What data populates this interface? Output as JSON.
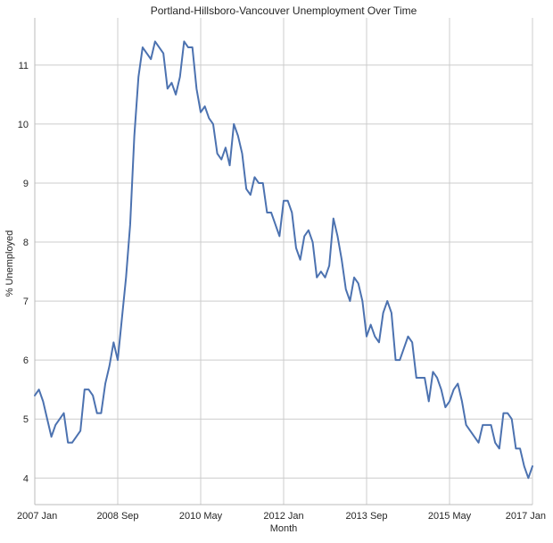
{
  "chart_data": {
    "type": "line",
    "title": "Portland-Hillsboro-Vancouver Unemployment Over Time",
    "xlabel": "Month",
    "ylabel": "% Unemployed",
    "x_tick_labels": [
      "2007 Jan",
      "2008 Sep",
      "2010 May",
      "2012 Jan",
      "2013 Sep",
      "2015 May",
      "2017 Jan"
    ],
    "y_ticks": [
      4,
      5,
      6,
      7,
      8,
      9,
      10,
      11
    ],
    "xlim": [
      "2007 Jan",
      "2017 Jan"
    ],
    "ylim": [
      3.55,
      11.8
    ],
    "grid": true,
    "line_color": "#4c72b0",
    "x": [
      "2007 Jan",
      "2007 Feb",
      "2007 Mar",
      "2007 Apr",
      "2007 May",
      "2007 Jun",
      "2007 Jul",
      "2007 Aug",
      "2007 Sep",
      "2007 Oct",
      "2007 Nov",
      "2007 Dec",
      "2008 Jan",
      "2008 Feb",
      "2008 Mar",
      "2008 Apr",
      "2008 May",
      "2008 Jun",
      "2008 Jul",
      "2008 Aug",
      "2008 Sep",
      "2008 Oct",
      "2008 Nov",
      "2008 Dec",
      "2009 Jan",
      "2009 Feb",
      "2009 Mar",
      "2009 Apr",
      "2009 May",
      "2009 Jun",
      "2009 Jul",
      "2009 Aug",
      "2009 Sep",
      "2009 Oct",
      "2009 Nov",
      "2009 Dec",
      "2010 Jan",
      "2010 Feb",
      "2010 Mar",
      "2010 Apr",
      "2010 May",
      "2010 Jun",
      "2010 Jul",
      "2010 Aug",
      "2010 Sep",
      "2010 Oct",
      "2010 Nov",
      "2010 Dec",
      "2011 Jan",
      "2011 Feb",
      "2011 Mar",
      "2011 Apr",
      "2011 May",
      "2011 Jun",
      "2011 Jul",
      "2011 Aug",
      "2011 Sep",
      "2011 Oct",
      "2011 Nov",
      "2011 Dec",
      "2012 Jan",
      "2012 Feb",
      "2012 Mar",
      "2012 Apr",
      "2012 May",
      "2012 Jun",
      "2012 Jul",
      "2012 Aug",
      "2012 Sep",
      "2012 Oct",
      "2012 Nov",
      "2012 Dec",
      "2013 Jan",
      "2013 Feb",
      "2013 Mar",
      "2013 Apr",
      "2013 May",
      "2013 Jun",
      "2013 Jul",
      "2013 Aug",
      "2013 Sep",
      "2013 Oct",
      "2013 Nov",
      "2013 Dec",
      "2014 Jan",
      "2014 Feb",
      "2014 Mar",
      "2014 Apr",
      "2014 May",
      "2014 Jun",
      "2014 Jul",
      "2014 Aug",
      "2014 Sep",
      "2014 Oct",
      "2014 Nov",
      "2014 Dec",
      "2015 Jan",
      "2015 Feb",
      "2015 Mar",
      "2015 Apr",
      "2015 May",
      "2015 Jun",
      "2015 Jul",
      "2015 Aug",
      "2015 Sep",
      "2015 Oct",
      "2015 Nov",
      "2015 Dec",
      "2016 Jan",
      "2016 Feb",
      "2016 Mar",
      "2016 Apr",
      "2016 May",
      "2016 Jun",
      "2016 Jul",
      "2016 Aug",
      "2016 Sep",
      "2016 Oct",
      "2016 Nov",
      "2016 Dec",
      "2017 Jan"
    ],
    "series": [
      {
        "values": [
          5.4,
          5.5,
          5.3,
          5.0,
          4.7,
          4.9,
          5.0,
          5.1,
          4.6,
          4.6,
          4.7,
          4.8,
          5.5,
          5.5,
          5.4,
          5.1,
          5.1,
          5.6,
          5.9,
          6.3,
          6.0,
          6.7,
          7.4,
          8.3,
          9.8,
          10.8,
          11.3,
          11.2,
          11.1,
          11.4,
          11.3,
          11.2,
          10.6,
          10.7,
          10.5,
          10.8,
          11.4,
          11.3,
          11.3,
          10.6,
          10.2,
          10.3,
          10.1,
          10.0,
          9.5,
          9.4,
          9.6,
          9.3,
          10.0,
          9.8,
          9.5,
          8.9,
          8.8,
          9.1,
          9.0,
          9.0,
          8.5,
          8.5,
          8.3,
          8.1,
          8.7,
          8.7,
          8.5,
          7.9,
          7.7,
          8.1,
          8.2,
          8.0,
          7.4,
          7.5,
          7.4,
          7.6,
          8.4,
          8.1,
          7.7,
          7.2,
          7.0,
          7.4,
          7.3,
          7.0,
          6.4,
          6.6,
          6.4,
          6.3,
          6.8,
          7.0,
          6.8,
          6.0,
          6.0,
          6.2,
          6.4,
          6.3,
          5.7,
          5.7,
          5.7,
          5.3,
          5.8,
          5.7,
          5.5,
          5.2,
          5.3,
          5.5,
          5.6,
          5.3,
          4.9,
          4.8,
          4.7,
          4.6,
          4.9,
          4.9,
          4.9,
          4.6,
          4.5,
          5.1,
          5.1,
          5.0,
          4.5,
          4.5,
          4.2,
          4.0,
          4.2
        ]
      }
    ]
  }
}
